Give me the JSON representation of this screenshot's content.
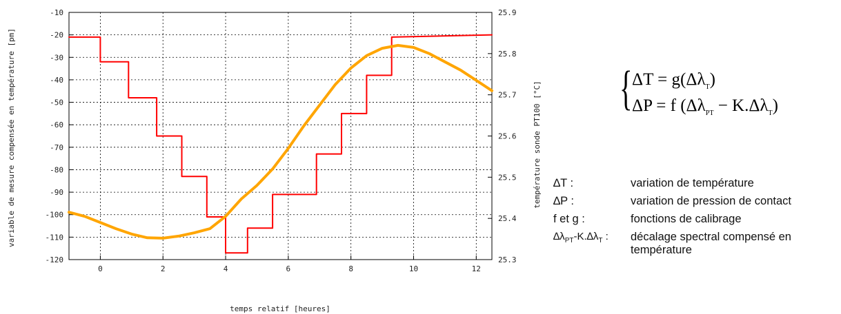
{
  "chart_data": {
    "type": "line",
    "xlabel": "temps relatif [heures]",
    "ylabel_left": "variable de mesure compensée en température [pm]",
    "ylabel_right": "température sonde PT100 [°C]",
    "xlim": [
      -1,
      12.5
    ],
    "ylim_left": [
      -120,
      -10
    ],
    "ylim_right": [
      25.3,
      25.9
    ],
    "xticks": [
      "0",
      "2",
      "4",
      "6",
      "8",
      "10",
      "12"
    ],
    "yticks_left": [
      "-10",
      "-20",
      "-30",
      "-40",
      "-50",
      "-60",
      "-70",
      "-80",
      "-90",
      "-100",
      "-110",
      "-120"
    ],
    "yticks_right": [
      "25.9",
      "25.8",
      "25.7",
      "25.6",
      "25.5",
      "25.4",
      "25.3"
    ],
    "grid": true,
    "series": [
      {
        "axis": "left",
        "color": "#ff0000",
        "x": [
          -1,
          0,
          0,
          0.9,
          0.9,
          1.8,
          1.8,
          2.6,
          2.6,
          3.4,
          3.4,
          4.0,
          4.0,
          4.7,
          4.7,
          5.5,
          5.5,
          6.9,
          6.9,
          7.7,
          7.7,
          8.5,
          8.5,
          9.3,
          9.3,
          12.5
        ],
        "y": [
          -21,
          -21,
          -32,
          -32,
          -48,
          -48,
          -65,
          -65,
          -83,
          -83,
          -101,
          -101,
          -117,
          -117,
          -106,
          -106,
          -91,
          -91,
          -73,
          -73,
          -55,
          -55,
          -38,
          -38,
          -21,
          -20
        ]
      },
      {
        "axis": "right",
        "color": "#ffa500",
        "x": [
          -1,
          -0.5,
          0,
          0.5,
          1,
          1.5,
          2,
          2.5,
          3,
          3.5,
          4,
          4.5,
          5,
          5.5,
          6,
          6.5,
          7,
          7.5,
          8,
          8.5,
          9,
          9.5,
          10,
          10.5,
          11,
          11.5,
          12,
          12.5
        ],
        "y": [
          25.415,
          25.405,
          25.39,
          25.375,
          25.362,
          25.353,
          25.352,
          25.357,
          25.365,
          25.375,
          25.405,
          25.447,
          25.48,
          25.52,
          25.57,
          25.625,
          25.675,
          25.725,
          25.765,
          25.795,
          25.813,
          25.82,
          25.815,
          25.8,
          25.78,
          25.76,
          25.735,
          25.71
        ]
      }
    ]
  },
  "equations": {
    "line1_left": "ΔT = g(Δλ",
    "line1_sub": "T",
    "line1_right": ")",
    "line2_left": "ΔP = f (Δλ",
    "line2_sub1": "PT",
    "line2_mid": " − K.Δλ",
    "line2_sub2": "T",
    "line2_right": ")"
  },
  "legend": [
    {
      "term": "∆T :",
      "desc": "variation de température"
    },
    {
      "term": "∆P :",
      "desc": "variation de pression de contact"
    },
    {
      "term": "f et g :",
      "desc": "fonctions de calibrage"
    },
    {
      "term_a": "∆λ",
      "term_sub1": "PT",
      "term_b": "-K.∆λ",
      "term_sub2": "T",
      "term_c": " :",
      "desc": "décalage spectral compensé en température"
    }
  ]
}
